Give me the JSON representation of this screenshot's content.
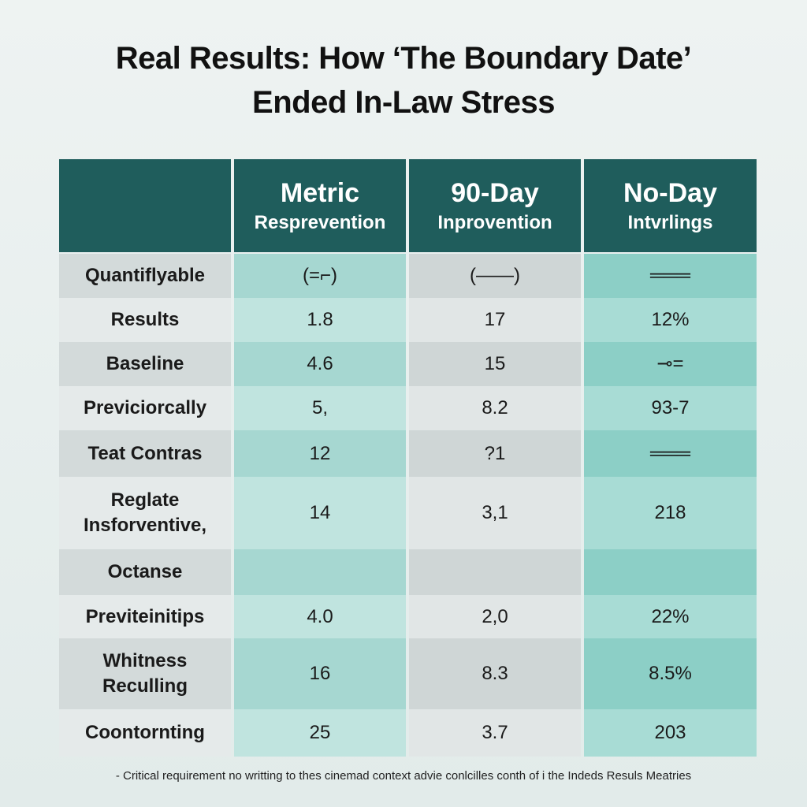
{
  "header": {
    "title_lines": [
      "Real Results: How ‘The Boundary Date’",
      "Ended In-Law Stress"
    ]
  },
  "table": {
    "columns": [
      null,
      [
        "Metric",
        "Resprevention"
      ],
      [
        "90-Day",
        "Inprovention"
      ],
      [
        "No-Day",
        "Intvrlings"
      ]
    ],
    "rows": [
      [
        "Quantiflyable",
        "(=⌐)",
        "(——)",
        "═══"
      ],
      [
        "Results",
        "1.8",
        "17",
        "12%"
      ],
      [
        "Baseline",
        "4.6",
        "15",
        "⊸="
      ],
      [
        "Previciorcally",
        "5,",
        "8.2",
        "93-7"
      ],
      [
        "Teat Contras",
        "12",
        "?1",
        "═══"
      ],
      [
        "Reglate\nInsforventive,",
        "14",
        "3,1",
        "218"
      ],
      [
        "Octanse",
        null,
        null,
        null
      ],
      [
        "Previteinitips",
        "4.0",
        "2,0",
        "22%"
      ],
      [
        "Whitness\nReculling",
        "16",
        "8.3",
        "8.5%"
      ],
      [
        "Coontornting",
        "25",
        "3.7",
        "203"
      ]
    ]
  },
  "footnote": "- Critical requirement no writting to thes cinemad context advie conlcilles conth of i the Indeds Resuls Meatries"
}
